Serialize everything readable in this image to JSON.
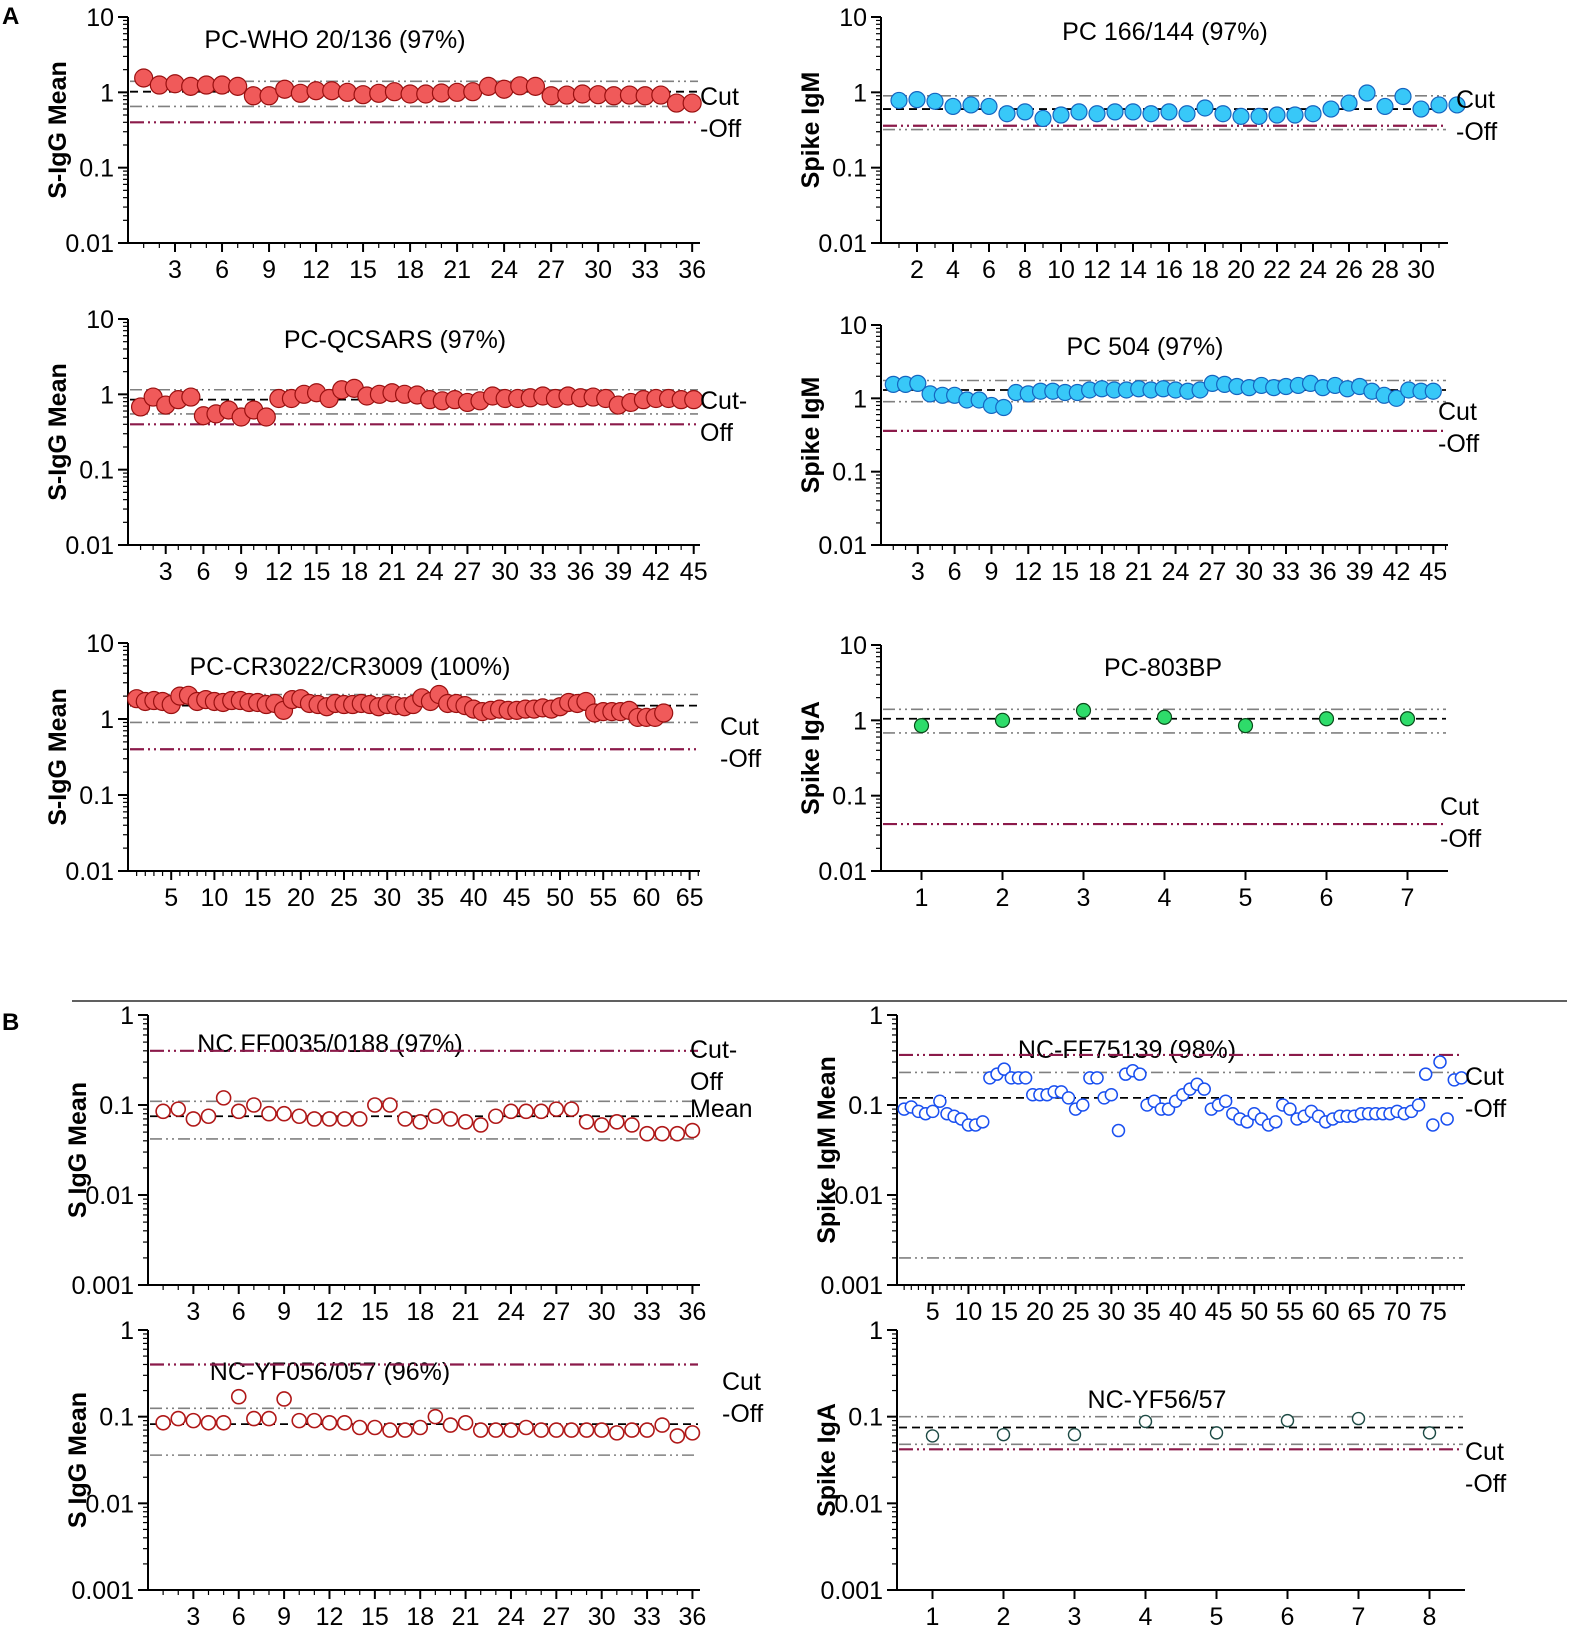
{
  "figure": {
    "panel_labels": [
      "A",
      "B"
    ]
  },
  "colors": {
    "axis": "#000000",
    "mean_line": "#000000",
    "sd_line": "#808080",
    "cutoff_line": "#8b1a4a",
    "red_fill": "#f05a5a",
    "red_stroke": "#9a1010",
    "cyan_fill": "#38c8f8",
    "cyan_stroke": "#1565c0",
    "green_fill": "#2edc6a",
    "green_stroke": "#0a4a1a",
    "darkred_open": "#b01818",
    "blue_open": "#1a50f0",
    "teal_open": "#1d4a44"
  },
  "chart_data": [
    {
      "id": "a1",
      "type": "scatter",
      "panel": "A",
      "title": "PC-WHO 20/136 (97%)",
      "ylabel": "S-IgG Mean",
      "yscale": "log",
      "ylim": [
        0.01,
        10
      ],
      "yticks": [
        "0.01",
        "0.1",
        "1",
        "10"
      ],
      "xlim": [
        0,
        36.5
      ],
      "xticks": [
        "3",
        "6",
        "9",
        "12",
        "15",
        "18",
        "21",
        "24",
        "27",
        "30",
        "33",
        "36"
      ],
      "values": [
        1.55,
        1.25,
        1.3,
        1.2,
        1.25,
        1.25,
        1.2,
        0.9,
        0.9,
        1.1,
        0.97,
        1.05,
        1.05,
        1.0,
        0.93,
        0.97,
        1.02,
        0.95,
        0.95,
        0.98,
        1.0,
        1.02,
        1.2,
        1.1,
        1.22,
        1.2,
        0.9,
        0.92,
        0.95,
        0.93,
        0.9,
        0.92,
        0.9,
        0.92,
        0.72,
        0.72
      ],
      "lines": {
        "mean": 1.02,
        "sd_upper": 1.4,
        "sd_lower": 0.65,
        "cutoff": 0.4
      },
      "marker": "red",
      "cutoff_label": [
        "Cut",
        "-Off"
      ]
    },
    {
      "id": "a2",
      "type": "scatter",
      "panel": "A",
      "title": "PC 166/144 (97%)",
      "ylabel": "Spike IgM",
      "yscale": "log",
      "ylim": [
        0.01,
        10
      ],
      "yticks": [
        "0.01",
        "0.1",
        "1",
        "10"
      ],
      "xlim": [
        0,
        31.5
      ],
      "xticks": [
        "2",
        "4",
        "6",
        "8",
        "10",
        "12",
        "14",
        "16",
        "18",
        "20",
        "22",
        "24",
        "26",
        "28",
        "30"
      ],
      "values": [
        0.78,
        0.8,
        0.76,
        0.65,
        0.68,
        0.65,
        0.52,
        0.55,
        0.45,
        0.5,
        0.55,
        0.52,
        0.55,
        0.55,
        0.52,
        0.55,
        0.52,
        0.62,
        0.52,
        0.48,
        0.48,
        0.5,
        0.5,
        0.52,
        0.6,
        0.72,
        0.98,
        0.65,
        0.88,
        0.6,
        0.68,
        0.68
      ],
      "lines": {
        "mean": 0.6,
        "sd_upper": 0.9,
        "sd_lower": 0.32,
        "cutoff": 0.36
      },
      "marker": "cyan",
      "cutoff_label": [
        "Cut",
        "-Off"
      ]
    },
    {
      "id": "a3",
      "type": "scatter",
      "panel": "A",
      "title": "PC-QCSARS (97%)",
      "ylabel": "S-IgG Mean",
      "yscale": "log",
      "ylim": [
        0.01,
        10
      ],
      "yticks": [
        "0.01",
        "0.1",
        "1",
        "10"
      ],
      "xlim": [
        0,
        45.5
      ],
      "xticks": [
        "3",
        "6",
        "9",
        "12",
        "15",
        "18",
        "21",
        "24",
        "27",
        "30",
        "33",
        "36",
        "39",
        "42",
        "45"
      ],
      "values": [
        0.68,
        0.92,
        0.72,
        0.85,
        0.92,
        0.52,
        0.55,
        0.62,
        0.5,
        0.62,
        0.5,
        0.88,
        0.88,
        1.0,
        1.05,
        0.88,
        1.15,
        1.2,
        0.95,
        1.0,
        1.05,
        1.0,
        0.98,
        0.85,
        0.82,
        0.85,
        0.78,
        0.82,
        0.95,
        0.88,
        0.88,
        0.9,
        0.95,
        0.88,
        0.95,
        0.9,
        0.92,
        0.88,
        0.72,
        0.78,
        0.85,
        0.88,
        0.88,
        0.85,
        0.85
      ],
      "lines": {
        "mean": 0.85,
        "sd_upper": 1.15,
        "sd_lower": 0.55,
        "cutoff": 0.4
      },
      "marker": "red",
      "cutoff_label": [
        "Cut-",
        "Off"
      ]
    },
    {
      "id": "a4",
      "type": "scatter",
      "panel": "A",
      "title": "PC 504 (97%)",
      "ylabel": "Spike IgM",
      "yscale": "log",
      "ylim": [
        0.01,
        10
      ],
      "yticks": [
        "0.01",
        "0.1",
        "1",
        "10"
      ],
      "xlim": [
        0,
        46.2
      ],
      "xticks": [
        "3",
        "6",
        "9",
        "12",
        "15",
        "18",
        "21",
        "24",
        "27",
        "30",
        "33",
        "36",
        "39",
        "42",
        "45"
      ],
      "values": [
        1.55,
        1.55,
        1.6,
        1.15,
        1.1,
        1.1,
        0.95,
        0.95,
        0.8,
        0.75,
        1.2,
        1.15,
        1.25,
        1.25,
        1.2,
        1.2,
        1.3,
        1.35,
        1.3,
        1.3,
        1.35,
        1.3,
        1.35,
        1.3,
        1.25,
        1.3,
        1.6,
        1.55,
        1.45,
        1.4,
        1.5,
        1.4,
        1.45,
        1.5,
        1.6,
        1.4,
        1.5,
        1.35,
        1.45,
        1.25,
        1.1,
        1.0,
        1.3,
        1.25,
        1.25
      ],
      "lines": {
        "mean": 1.3,
        "sd_upper": 1.75,
        "sd_lower": 0.9,
        "cutoff": 0.36
      },
      "marker": "cyan",
      "cutoff_label": [
        "Cut",
        "-Off"
      ]
    },
    {
      "id": "a5",
      "type": "scatter",
      "panel": "A",
      "title": "PC-CR3022/CR3009 (100%)",
      "ylabel": "S-IgG Mean",
      "yscale": "log",
      "ylim": [
        0.01,
        10
      ],
      "yticks": [
        "0.01",
        "0.1",
        "1",
        "10"
      ],
      "xlim": [
        0,
        66.2
      ],
      "xticks": [
        "5",
        "10",
        "15",
        "20",
        "25",
        "30",
        "35",
        "40",
        "45",
        "50",
        "55",
        "60",
        "65"
      ],
      "values": [
        1.85,
        1.7,
        1.75,
        1.7,
        1.55,
        2.0,
        2.05,
        1.7,
        1.8,
        1.7,
        1.65,
        1.75,
        1.75,
        1.65,
        1.65,
        1.55,
        1.6,
        1.3,
        1.8,
        1.85,
        1.6,
        1.55,
        1.45,
        1.6,
        1.55,
        1.55,
        1.6,
        1.55,
        1.45,
        1.55,
        1.5,
        1.45,
        1.55,
        1.9,
        1.7,
        2.1,
        1.6,
        1.6,
        1.5,
        1.35,
        1.25,
        1.3,
        1.35,
        1.3,
        1.3,
        1.35,
        1.35,
        1.4,
        1.35,
        1.45,
        1.65,
        1.6,
        1.7,
        1.2,
        1.25,
        1.25,
        1.25,
        1.3,
        1.05,
        1.05,
        1.05,
        1.2
      ],
      "lines": {
        "mean": 1.5,
        "sd_upper": 2.1,
        "sd_lower": 0.9,
        "cutoff": 0.4
      },
      "marker": "red",
      "cutoff_label": [
        "Cut",
        "-Off"
      ]
    },
    {
      "id": "a6",
      "type": "scatter",
      "panel": "A",
      "title": "PC-803BP",
      "ylabel": "Spike IgA",
      "yscale": "log",
      "ylim": [
        0.01,
        10
      ],
      "yticks": [
        "0.01",
        "0.1",
        "1",
        "10"
      ],
      "xlim": [
        0.5,
        7.5
      ],
      "xticks": [
        "1",
        "2",
        "3",
        "4",
        "5",
        "6",
        "7"
      ],
      "values": [
        0.85,
        1.0,
        1.35,
        1.1,
        0.85,
        1.05,
        1.05
      ],
      "lines": {
        "mean": 1.05,
        "sd_upper": 1.4,
        "sd_lower": 0.68,
        "cutoff": 0.042
      },
      "marker": "green",
      "cutoff_label": [
        "Cut",
        "-Off"
      ]
    },
    {
      "id": "b1",
      "type": "scatter",
      "panel": "B",
      "title": "NC FF0035/0188 (97%)",
      "ylabel": "S IgG Mean",
      "yscale": "log",
      "ylim": [
        0.001,
        1
      ],
      "yticks": [
        "0.001",
        "0.01",
        "0.1",
        "1"
      ],
      "xlim": [
        0,
        36.5
      ],
      "xticks": [
        "3",
        "6",
        "9",
        "12",
        "15",
        "18",
        "21",
        "24",
        "27",
        "30",
        "33",
        "36"
      ],
      "values": [
        0.085,
        0.09,
        0.07,
        0.075,
        0.12,
        0.085,
        0.1,
        0.08,
        0.08,
        0.075,
        0.07,
        0.07,
        0.07,
        0.07,
        0.1,
        0.1,
        0.07,
        0.065,
        0.075,
        0.07,
        0.065,
        0.06,
        0.075,
        0.085,
        0.085,
        0.085,
        0.09,
        0.09,
        0.065,
        0.06,
        0.065,
        0.06,
        0.048,
        0.048,
        0.048,
        0.052
      ],
      "lines": {
        "mean": 0.075,
        "sd_upper": 0.11,
        "sd_lower": 0.042,
        "cutoff": 0.4
      },
      "marker": "darkred_open",
      "cutoff_label": [
        "Cut-",
        "Off"
      ],
      "mean_label": "Mean"
    },
    {
      "id": "b2",
      "type": "scatter",
      "panel": "B",
      "title": "NC-FF75139 (98%)",
      "ylabel": "Spike IgM Mean",
      "yscale": "log",
      "ylim": [
        0.001,
        1
      ],
      "yticks": [
        "0.001",
        "0.01",
        "0.1",
        "1"
      ],
      "xlim": [
        0,
        79.5
      ],
      "xticks": [
        "5",
        "10",
        "15",
        "20",
        "25",
        "30",
        "35",
        "40",
        "45",
        "50",
        "55",
        "60",
        "65",
        "70",
        "75"
      ],
      "values": [
        0.09,
        0.095,
        0.085,
        0.08,
        0.085,
        0.11,
        0.08,
        0.075,
        0.07,
        0.06,
        0.06,
        0.065,
        0.2,
        0.22,
        0.25,
        0.2,
        0.2,
        0.2,
        0.13,
        0.13,
        0.13,
        0.14,
        0.14,
        0.12,
        0.09,
        0.1,
        0.2,
        0.2,
        0.12,
        0.13,
        0.052,
        0.22,
        0.24,
        0.22,
        0.1,
        0.11,
        0.09,
        0.09,
        0.11,
        0.13,
        0.15,
        0.17,
        0.15,
        0.09,
        0.1,
        0.11,
        0.08,
        0.07,
        0.065,
        0.08,
        0.07,
        0.06,
        0.065,
        0.1,
        0.09,
        0.07,
        0.075,
        0.085,
        0.075,
        0.065,
        0.07,
        0.075,
        0.075,
        0.075,
        0.08,
        0.08,
        0.08,
        0.08,
        0.08,
        0.085,
        0.08,
        0.085,
        0.1,
        0.22,
        0.06,
        0.3,
        0.07,
        0.19,
        0.2
      ],
      "lines": {
        "mean": 0.12,
        "sd_upper": 0.23,
        "sd_lower": 0.002,
        "cutoff": 0.36
      },
      "marker": "blue_open",
      "cutoff_label": [
        "Cut",
        "-Off"
      ]
    },
    {
      "id": "b3",
      "type": "scatter",
      "panel": "B",
      "title": "NC-YF056/057 (96%)",
      "ylabel": "S IgG Mean",
      "yscale": "log",
      "ylim": [
        0.001,
        1
      ],
      "yticks": [
        "0.001",
        "0.01",
        "0.1",
        "1"
      ],
      "xlim": [
        0,
        36.5
      ],
      "xticks": [
        "3",
        "6",
        "9",
        "12",
        "15",
        "18",
        "21",
        "24",
        "27",
        "30",
        "33",
        "36"
      ],
      "values": [
        0.085,
        0.095,
        0.09,
        0.085,
        0.085,
        0.17,
        0.095,
        0.095,
        0.16,
        0.09,
        0.09,
        0.085,
        0.085,
        0.075,
        0.075,
        0.07,
        0.07,
        0.075,
        0.1,
        0.08,
        0.085,
        0.07,
        0.07,
        0.07,
        0.075,
        0.07,
        0.07,
        0.07,
        0.07,
        0.07,
        0.065,
        0.07,
        0.07,
        0.08,
        0.06,
        0.065
      ],
      "lines": {
        "mean": 0.082,
        "sd_upper": 0.125,
        "sd_lower": 0.036,
        "cutoff": 0.4
      },
      "marker": "darkred_open",
      "cutoff_label": [
        "Cut",
        "-Off"
      ]
    },
    {
      "id": "b4",
      "type": "scatter",
      "panel": "B",
      "title": "NC-YF56/57",
      "ylabel": "Spike IgA",
      "yscale": "log",
      "ylim": [
        0.001,
        1
      ],
      "yticks": [
        "0.001",
        "0.01",
        "0.1",
        "1"
      ],
      "xlim": [
        0.5,
        8.5
      ],
      "xticks": [
        "1",
        "2",
        "3",
        "4",
        "5",
        "6",
        "7",
        "8"
      ],
      "values": [
        0.06,
        0.062,
        0.062,
        0.088,
        0.065,
        0.09,
        0.095,
        0.065
      ],
      "lines": {
        "mean": 0.075,
        "sd_upper": 0.1,
        "sd_lower": 0.048,
        "cutoff": 0.042
      },
      "marker": "teal_open",
      "cutoff_label": [
        "Cut",
        "-Off"
      ]
    }
  ]
}
